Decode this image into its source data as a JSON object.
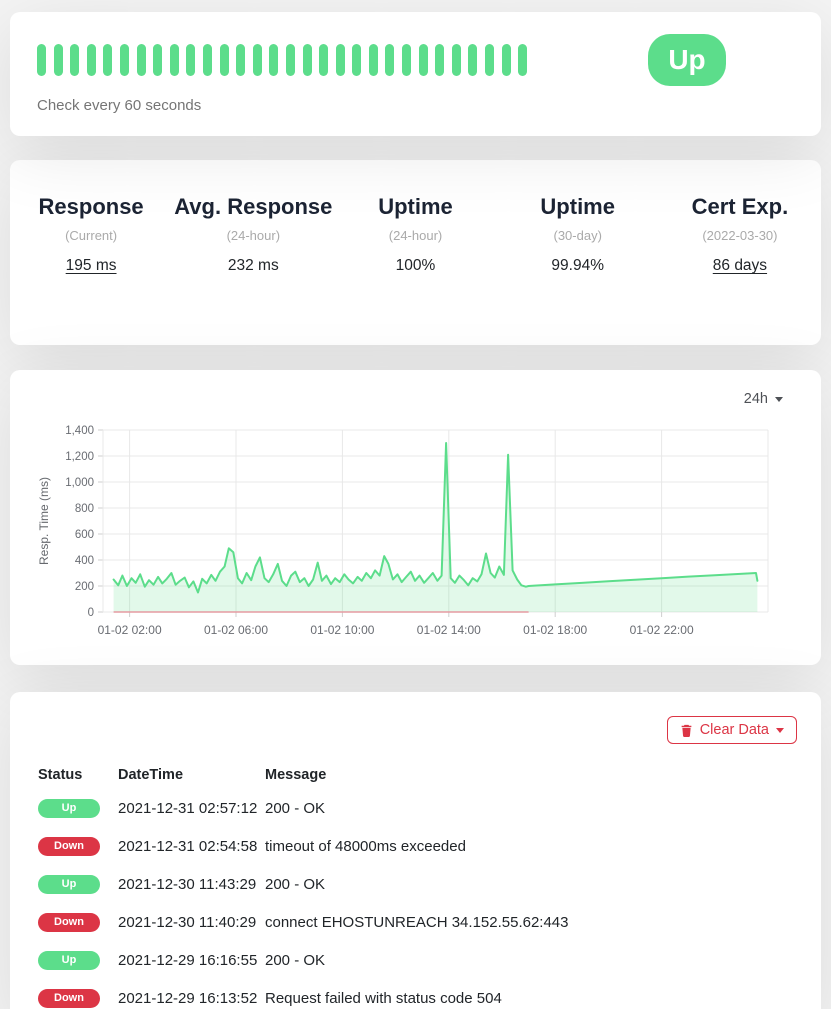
{
  "colors": {
    "page_bg": "#f4f4f4",
    "card_bg": "#ffffff",
    "green": "#5cdd8b",
    "red": "#dc3545",
    "text_dark": "#212529",
    "text_gray": "#757575",
    "subtitle_gray": "#aaaaaa",
    "grid": "#e8e8e8",
    "axis_text": "#696c72"
  },
  "monitor": {
    "status_label": "Up",
    "check_interval_text": "Check every 60 seconds",
    "heartbeat_count": 30
  },
  "stats": {
    "items": [
      {
        "title": "Response",
        "subtitle": "(Current)",
        "value": "195 ms"
      },
      {
        "title": "Avg. Response",
        "subtitle": "(24-hour)",
        "value": "232 ms"
      },
      {
        "title": "Uptime",
        "subtitle": "(24-hour)",
        "value": "100%"
      },
      {
        "title": "Uptime",
        "subtitle": "(30-day)",
        "value": "99.94%"
      },
      {
        "title": "Cert Exp.",
        "subtitle": "(2022-03-30)",
        "value": "86 days"
      }
    ]
  },
  "chart": {
    "period_label": "24h"
  },
  "chart_data": {
    "type": "area",
    "title": "",
    "xlabel": "",
    "ylabel": "Resp. Time (ms)",
    "x_range": [
      1.0,
      26.0
    ],
    "y_range": [
      0,
      1400
    ],
    "grid": true,
    "x_ticks": [
      {
        "v": 2,
        "label": "01-02 02:00"
      },
      {
        "v": 6,
        "label": "01-02 06:00"
      },
      {
        "v": 10,
        "label": "01-02 10:00"
      },
      {
        "v": 14,
        "label": "01-02 14:00"
      },
      {
        "v": 18,
        "label": "01-02 18:00"
      },
      {
        "v": 22,
        "label": "01-02 22:00"
      }
    ],
    "y_ticks": [
      {
        "v": 0,
        "label": "0"
      },
      {
        "v": 200,
        "label": "200"
      },
      {
        "v": 400,
        "label": "400"
      },
      {
        "v": 600,
        "label": "600"
      },
      {
        "v": 800,
        "label": "800"
      },
      {
        "v": 1000,
        "label": "1,000"
      },
      {
        "v": 1200,
        "label": "1,200"
      },
      {
        "v": 1400,
        "label": "1,400"
      }
    ],
    "line_color": "#5cdd8b",
    "area_color": "rgba(92,221,139,0.18)",
    "down_color": "#e59ba2",
    "down_segment": {
      "value": 0,
      "from": 1.4,
      "to": 17.0
    },
    "series": [
      {
        "name": "Resp. Time (ms)",
        "points": [
          [
            1.4,
            250
          ],
          [
            1.57,
            205
          ],
          [
            1.73,
            280
          ],
          [
            1.9,
            200
          ],
          [
            2.07,
            260
          ],
          [
            2.23,
            225
          ],
          [
            2.4,
            290
          ],
          [
            2.57,
            195
          ],
          [
            2.73,
            245
          ],
          [
            2.9,
            210
          ],
          [
            3.07,
            270
          ],
          [
            3.23,
            220
          ],
          [
            3.4,
            255
          ],
          [
            3.57,
            300
          ],
          [
            3.73,
            210
          ],
          [
            3.9,
            240
          ],
          [
            4.07,
            265
          ],
          [
            4.23,
            190
          ],
          [
            4.4,
            235
          ],
          [
            4.57,
            150
          ],
          [
            4.73,
            255
          ],
          [
            4.9,
            220
          ],
          [
            5.07,
            285
          ],
          [
            5.23,
            240
          ],
          [
            5.4,
            310
          ],
          [
            5.57,
            350
          ],
          [
            5.73,
            490
          ],
          [
            5.9,
            460
          ],
          [
            6.07,
            260
          ],
          [
            6.23,
            220
          ],
          [
            6.4,
            300
          ],
          [
            6.57,
            245
          ],
          [
            6.73,
            350
          ],
          [
            6.9,
            420
          ],
          [
            7.07,
            260
          ],
          [
            7.23,
            230
          ],
          [
            7.4,
            290
          ],
          [
            7.57,
            370
          ],
          [
            7.73,
            240
          ],
          [
            7.9,
            200
          ],
          [
            8.07,
            280
          ],
          [
            8.23,
            310
          ],
          [
            8.4,
            230
          ],
          [
            8.57,
            260
          ],
          [
            8.73,
            200
          ],
          [
            8.9,
            250
          ],
          [
            9.07,
            380
          ],
          [
            9.23,
            240
          ],
          [
            9.4,
            280
          ],
          [
            9.57,
            215
          ],
          [
            9.73,
            260
          ],
          [
            9.9,
            230
          ],
          [
            10.07,
            290
          ],
          [
            10.23,
            250
          ],
          [
            10.4,
            220
          ],
          [
            10.57,
            270
          ],
          [
            10.73,
            240
          ],
          [
            10.9,
            300
          ],
          [
            11.07,
            260
          ],
          [
            11.23,
            320
          ],
          [
            11.4,
            280
          ],
          [
            11.57,
            430
          ],
          [
            11.73,
            370
          ],
          [
            11.9,
            250
          ],
          [
            12.07,
            290
          ],
          [
            12.23,
            230
          ],
          [
            12.4,
            270
          ],
          [
            12.57,
            310
          ],
          [
            12.73,
            240
          ],
          [
            12.9,
            280
          ],
          [
            13.07,
            225
          ],
          [
            13.23,
            260
          ],
          [
            13.4,
            300
          ],
          [
            13.57,
            240
          ],
          [
            13.73,
            280
          ],
          [
            13.9,
            1300
          ],
          [
            14.07,
            260
          ],
          [
            14.23,
            225
          ],
          [
            14.4,
            280
          ],
          [
            14.57,
            245
          ],
          [
            14.73,
            205
          ],
          [
            14.9,
            260
          ],
          [
            15.07,
            235
          ],
          [
            15.23,
            290
          ],
          [
            15.4,
            450
          ],
          [
            15.57,
            300
          ],
          [
            15.73,
            265
          ],
          [
            15.9,
            350
          ],
          [
            16.07,
            285
          ],
          [
            16.23,
            1210
          ],
          [
            16.4,
            320
          ],
          [
            16.57,
            250
          ],
          [
            16.73,
            205
          ],
          [
            16.9,
            195
          ],
          [
            17.0,
            200
          ],
          [
            18.0,
            212
          ],
          [
            19.0,
            224
          ],
          [
            20.0,
            236
          ],
          [
            21.0,
            248
          ],
          [
            22.0,
            260
          ],
          [
            23.0,
            272
          ],
          [
            24.0,
            283
          ],
          [
            25.3,
            297
          ],
          [
            25.55,
            300
          ],
          [
            25.6,
            240
          ]
        ]
      }
    ]
  },
  "events": {
    "clear_button_label": "Clear Data",
    "columns": [
      "Status",
      "DateTime",
      "Message"
    ],
    "rows": [
      {
        "status": "Up",
        "datetime": "2021-12-31 02:57:12",
        "message": "200 - OK"
      },
      {
        "status": "Down",
        "datetime": "2021-12-31 02:54:58",
        "message": "timeout of 48000ms exceeded"
      },
      {
        "status": "Up",
        "datetime": "2021-12-30 11:43:29",
        "message": "200 - OK"
      },
      {
        "status": "Down",
        "datetime": "2021-12-30 11:40:29",
        "message": "connect EHOSTUNREACH 34.152.55.62:443"
      },
      {
        "status": "Up",
        "datetime": "2021-12-29 16:16:55",
        "message": "200 - OK"
      },
      {
        "status": "Down",
        "datetime": "2021-12-29 16:13:52",
        "message": "Request failed with status code 504"
      }
    ]
  }
}
